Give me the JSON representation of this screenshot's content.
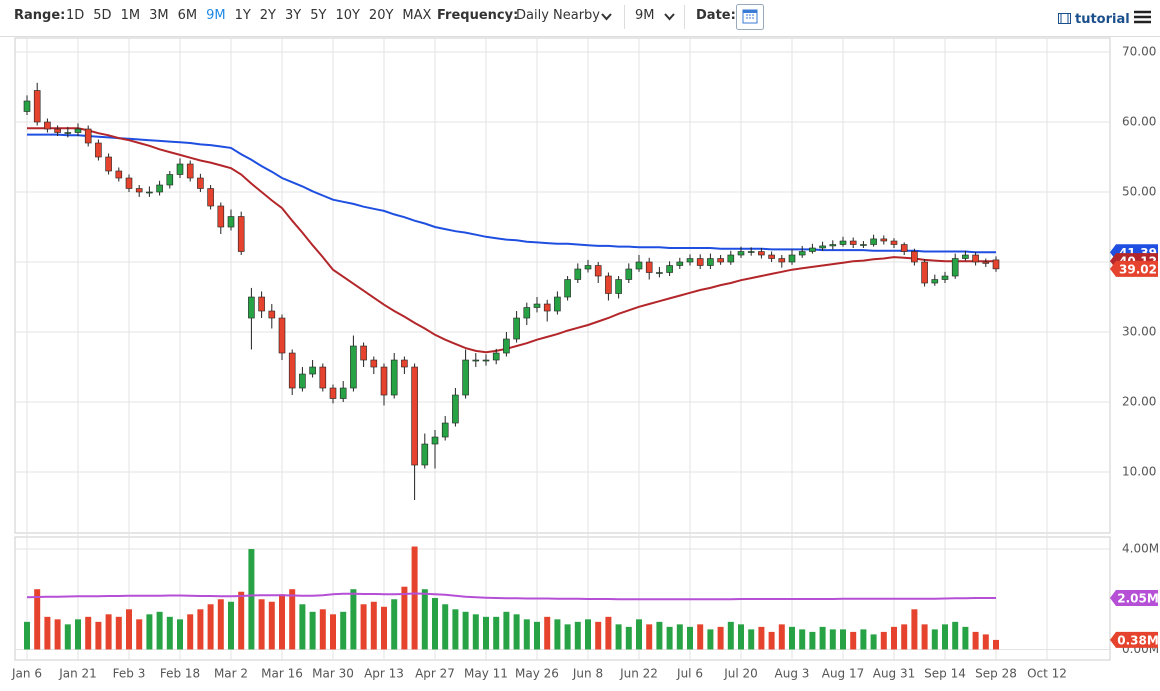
{
  "toolbar": {
    "range_label": "Range:",
    "ranges": [
      "1D",
      "5D",
      "1M",
      "3M",
      "6M",
      "9M",
      "1Y",
      "2Y",
      "3Y",
      "5Y",
      "10Y",
      "20Y",
      "MAX"
    ],
    "active_range": 5,
    "frequency_label": "Frequency:",
    "frequency": "Daily Nearby",
    "period": "9M",
    "date_label": "Date:",
    "tutorial": "tutorial"
  },
  "chart_data": {
    "type": "candlestick",
    "categories": [
      "Jan 6",
      null,
      null,
      null,
      null,
      "Jan 21",
      null,
      null,
      null,
      null,
      "Feb 3",
      null,
      null,
      null,
      null,
      "Feb 18",
      null,
      null,
      null,
      null,
      "Mar 2",
      null,
      null,
      null,
      null,
      "Mar 16",
      null,
      null,
      null,
      null,
      "Mar 30",
      null,
      null,
      null,
      null,
      "Apr 13",
      null,
      null,
      null,
      null,
      "Apr 27",
      null,
      null,
      null,
      null,
      "May 11",
      null,
      null,
      null,
      null,
      "May 26",
      null,
      null,
      null,
      null,
      "Jun 8",
      null,
      null,
      null,
      null,
      "Jun 22",
      null,
      null,
      null,
      null,
      "Jul 6",
      null,
      null,
      null,
      null,
      "Jul 20",
      null,
      null,
      null,
      null,
      "Aug 3",
      null,
      null,
      null,
      null,
      "Aug 17",
      null,
      null,
      null,
      null,
      "Aug 31",
      null,
      null,
      null,
      null,
      "Sep 14",
      null,
      null,
      null,
      null,
      "Sep 28",
      null,
      null,
      null,
      null,
      "Oct 12"
    ],
    "open": [
      61.5,
      64.5,
      60,
      59,
      58.5,
      58.5,
      59,
      57,
      55,
      53,
      52,
      50.5,
      50,
      50,
      51,
      52.5,
      54,
      52,
      50.5,
      48,
      45,
      46.5,
      32,
      35,
      33,
      32,
      27,
      22,
      24,
      25,
      22,
      20.5,
      22,
      28,
      26,
      25,
      21,
      26,
      25,
      11,
      14,
      15,
      17,
      21,
      26,
      26,
      26,
      27,
      29,
      32,
      33.5,
      34,
      33,
      35,
      37.5,
      39,
      39.5,
      38,
      35.5,
      37.5,
      39,
      40,
      38.5,
      38.5,
      39.5,
      40,
      40.5,
      39.5,
      40.5,
      40,
      41,
      41.5,
      41.5,
      41,
      40.5,
      40,
      41,
      41.5,
      42,
      42.3,
      42.5,
      43,
      42.5,
      42.5,
      43.3,
      43,
      42.5,
      41.5,
      40,
      37,
      37.5,
      38,
      40.5,
      41,
      40,
      40.3,
      null,
      null,
      null,
      null,
      null
    ],
    "high": [
      63.8,
      65.6,
      60.5,
      59.5,
      59.3,
      59.8,
      59.5,
      57.5,
      55.5,
      53.5,
      52.5,
      51,
      50.8,
      51.6,
      53,
      54.8,
      54.5,
      52.6,
      51,
      48.5,
      47.5,
      47.2,
      36.3,
      35.8,
      34,
      32.5,
      27.5,
      25,
      26,
      25.5,
      22.5,
      23,
      29.5,
      28.5,
      26.5,
      25.5,
      27,
      26.5,
      25.5,
      15.5,
      16,
      18,
      22,
      27.5,
      27,
      26.8,
      27.6,
      30,
      33,
      34.2,
      35,
      34.6,
      35.8,
      38,
      39.8,
      40.3,
      40,
      38.5,
      38,
      39.8,
      41,
      40.6,
      39.3,
      40.1,
      40.6,
      41.1,
      41.1,
      41.2,
      41,
      41.6,
      42.2,
      42.1,
      42,
      41.5,
      41,
      41.8,
      42.3,
      42.6,
      42.9,
      43.1,
      43.6,
      43.5,
      43,
      43.9,
      43.8,
      43.4,
      42.8,
      41.9,
      40.4,
      38.2,
      38.6,
      41.2,
      41.6,
      41.4,
      40.5,
      40.8,
      null,
      null,
      null,
      null,
      null
    ],
    "low": [
      61,
      59.5,
      58.5,
      58,
      57.8,
      58,
      56.5,
      54.5,
      52.5,
      51.5,
      50,
      49.3,
      49.3,
      49.5,
      50.5,
      52,
      51.5,
      50,
      47.5,
      44,
      44.5,
      41,
      27.5,
      32,
      30.5,
      26,
      21,
      21.5,
      23.5,
      21.5,
      19.8,
      20,
      21.5,
      25,
      24,
      19.5,
      20.5,
      24,
      6,
      10.5,
      10.5,
      14.5,
      16.5,
      20.5,
      25,
      25.2,
      25.4,
      26.5,
      28.5,
      31,
      32.8,
      31.5,
      32.5,
      34.5,
      37,
      38.5,
      37,
      34.5,
      34.8,
      37,
      38.6,
      37.5,
      37.8,
      38,
      39,
      39.5,
      39,
      39,
      39.6,
      39.6,
      40.6,
      40.9,
      40.5,
      40,
      39.2,
      39.6,
      40.6,
      41.2,
      41.6,
      41.8,
      42.2,
      42,
      42,
      42.2,
      42.5,
      42,
      41,
      39.5,
      36.5,
      36.6,
      37,
      37.6,
      40.2,
      39.5,
      39.3,
      38.6,
      null,
      null,
      null,
      null,
      null
    ],
    "close": [
      63,
      60,
      59,
      58.5,
      58.5,
      59,
      57,
      55,
      53,
      52,
      50.5,
      50,
      50,
      51,
      52.5,
      54,
      52,
      50.5,
      48,
      45,
      46.5,
      41.5,
      35,
      33,
      32,
      27,
      22,
      24,
      25,
      22,
      20.5,
      22,
      28,
      26,
      25,
      21,
      26,
      25,
      11,
      14,
      15,
      17,
      21,
      26,
      26,
      26,
      27,
      29,
      32,
      33.5,
      34,
      33,
      35,
      37.5,
      39,
      39.5,
      38,
      35.5,
      37.5,
      39,
      40,
      38.5,
      38.5,
      39.5,
      40,
      40.5,
      39.5,
      40.5,
      40,
      41,
      41.5,
      41.5,
      41,
      40.5,
      40,
      41,
      41.5,
      42,
      42.3,
      42.5,
      43,
      42.5,
      42.5,
      43.3,
      43,
      42.5,
      41.5,
      40,
      37,
      37.5,
      38,
      40.5,
      41,
      40,
      39.8,
      39.02,
      null,
      null,
      null,
      null,
      null
    ],
    "up_color": "#27a345",
    "down_color": "#e5432d",
    "flag_color": "#e5432d",
    "series": [
      {
        "color": "#1f4fe0",
        "values": [
          58.2,
          58.2,
          58.2,
          58.2,
          58.1,
          58.1,
          58.0,
          57.9,
          57.8,
          57.7,
          57.6,
          57.5,
          57.4,
          57.3,
          57.2,
          57.1,
          57.0,
          56.8,
          56.7,
          56.5,
          56.3,
          55.4,
          54.6,
          53.7,
          52.9,
          52.0,
          51.4,
          50.8,
          50.1,
          49.5,
          48.9,
          48.6,
          48.3,
          47.9,
          47.6,
          47.3,
          46.8,
          46.4,
          45.9,
          45.5,
          45.0,
          44.7,
          44.4,
          44.2,
          43.9,
          43.6,
          43.4,
          43.2,
          43.1,
          42.9,
          42.8,
          42.7,
          42.6,
          42.6,
          42.5,
          42.4,
          42.3,
          42.3,
          42.2,
          42.2,
          42.1,
          42.1,
          42.1,
          42.0,
          42.0,
          42.0,
          42.0,
          42.0,
          41.9,
          41.9,
          41.9,
          41.9,
          41.9,
          41.8,
          41.8,
          41.8,
          41.8,
          41.8,
          41.7,
          41.7,
          41.7,
          41.7,
          41.7,
          41.6,
          41.6,
          41.6,
          41.6,
          41.6,
          41.5,
          41.5,
          41.5,
          41.5,
          41.5,
          41.4,
          41.4,
          41.39,
          null,
          null,
          null,
          null,
          null
        ]
      },
      {
        "color": "#b3262a",
        "values": [
          59.1,
          59.1,
          59.1,
          59.1,
          59.1,
          59.1,
          58.8,
          58.4,
          58.1,
          57.7,
          57.4,
          57.0,
          56.6,
          56.1,
          55.7,
          55.3,
          54.9,
          54.5,
          54.2,
          53.8,
          53.4,
          52.5,
          51.2,
          50.0,
          48.8,
          47.7,
          45.9,
          44.2,
          42.4,
          40.7,
          38.9,
          37.9,
          36.9,
          35.9,
          34.9,
          33.9,
          33.0,
          32.2,
          31.3,
          30.5,
          29.6,
          28.9,
          28.3,
          27.7,
          27.3,
          27.1,
          27.3,
          27.6,
          28.0,
          28.4,
          28.9,
          29.3,
          29.7,
          30.2,
          30.6,
          31.0,
          31.5,
          32.0,
          32.6,
          33.1,
          33.6,
          34.0,
          34.4,
          34.8,
          35.2,
          35.6,
          36.0,
          36.3,
          36.7,
          37.0,
          37.4,
          37.7,
          38.0,
          38.3,
          38.6,
          38.9,
          39.1,
          39.3,
          39.5,
          39.7,
          39.9,
          40.1,
          40.2,
          40.4,
          40.5,
          40.7,
          40.6,
          40.5,
          40.3,
          40.2,
          40.1,
          40.1,
          40.1,
          40.1,
          40.1,
          40.12,
          null,
          null,
          null,
          null,
          null
        ]
      }
    ],
    "ylim": [
      1.29,
      72
    ],
    "yticks": [
      {
        "value": 10,
        "label": "10.00"
      },
      {
        "value": 20,
        "label": "20.00"
      },
      {
        "value": 30,
        "label": "30.00"
      },
      {
        "value": 40,
        "label": "40.00"
      },
      {
        "value": 50,
        "label": "50.00"
      },
      {
        "value": 60,
        "label": "60.00"
      },
      {
        "value": 70,
        "label": "70.00"
      }
    ],
    "grid": true,
    "volume": {
      "values": [
        1.1,
        2.4,
        1.3,
        1.2,
        1.0,
        1.2,
        1.3,
        1.1,
        1.4,
        1.3,
        1.6,
        1.2,
        1.4,
        1.5,
        1.3,
        1.2,
        1.4,
        1.6,
        1.8,
        2.0,
        1.9,
        2.3,
        4.0,
        2.0,
        1.9,
        2.2,
        2.4,
        1.8,
        1.5,
        1.6,
        1.4,
        1.5,
        2.4,
        1.8,
        1.9,
        1.7,
        2.0,
        2.5,
        4.1,
        2.4,
        2.05,
        1.8,
        1.6,
        1.5,
        1.4,
        1.3,
        1.3,
        1.5,
        1.4,
        1.2,
        1.1,
        1.3,
        1.2,
        1.0,
        1.1,
        1.2,
        1.1,
        1.3,
        1.0,
        0.9,
        1.2,
        1.0,
        1.1,
        0.9,
        1.0,
        0.9,
        1.0,
        0.8,
        0.9,
        1.1,
        1.0,
        0.8,
        0.9,
        0.7,
        1.0,
        0.9,
        0.8,
        0.7,
        0.9,
        0.8,
        0.8,
        0.7,
        0.8,
        0.6,
        0.7,
        0.9,
        1.0,
        1.6,
        1.0,
        0.8,
        1.0,
        1.1,
        0.9,
        0.7,
        0.6,
        0.38,
        null,
        null,
        null,
        null,
        null
      ],
      "value_labels": [
        null,
        null,
        null,
        null,
        null,
        null,
        null,
        null,
        null,
        null,
        null,
        null,
        null,
        null,
        null,
        null,
        null,
        null,
        null,
        null,
        null,
        null,
        null,
        null,
        null,
        null,
        null,
        null,
        null,
        null,
        null,
        null,
        null,
        null,
        null,
        null,
        null,
        null,
        null,
        null,
        null,
        null,
        null,
        null,
        null,
        null,
        null,
        null,
        null,
        null,
        null,
        null,
        null,
        null,
        null,
        null,
        null,
        null,
        null,
        null,
        null,
        null,
        null,
        null,
        null,
        null,
        null,
        null,
        null,
        null,
        null,
        null,
        null,
        null,
        null,
        null,
        null,
        null,
        null,
        null,
        null,
        null,
        null,
        null,
        null,
        null,
        null,
        null,
        null,
        null,
        null,
        null,
        null,
        null,
        null,
        "0.38M",
        null,
        null,
        null,
        null,
        null
      ],
      "ylim": [
        -0.42,
        4.48
      ],
      "yticks": [
        {
          "value": 0,
          "label": "0.00M"
        },
        {
          "value": 4,
          "label": "4.00M"
        }
      ],
      "series": [
        {
          "color": "#b54fd6",
          "values": [
            2.08,
            2.09,
            2.1,
            2.1,
            2.11,
            2.12,
            2.12,
            2.12,
            2.13,
            2.13,
            2.14,
            2.14,
            2.14,
            2.14,
            2.15,
            2.15,
            2.14,
            2.13,
            2.13,
            2.12,
            2.12,
            2.13,
            2.15,
            2.16,
            2.16,
            2.16,
            2.15,
            2.14,
            2.14,
            2.16,
            2.2,
            2.22,
            2.22,
            2.21,
            2.21,
            2.2,
            2.2,
            2.21,
            2.23,
            2.22,
            2.2,
            2.18,
            2.14,
            2.1,
            2.08,
            2.06,
            2.05,
            2.04,
            2.04,
            2.03,
            2.03,
            2.03,
            2.02,
            2.02,
            2.02,
            2.01,
            2.01,
            2.01,
            2.0,
            2.0,
            2.0,
            2.0,
            2.0,
            2.0,
            2.0,
            2.0,
            2.0,
            2.0,
            2.0,
            2.0,
            2.01,
            2.01,
            2.01,
            2.01,
            2.01,
            2.01,
            2.01,
            2.01,
            2.01,
            2.01,
            2.02,
            2.02,
            2.02,
            2.02,
            2.02,
            2.02,
            2.02,
            2.02,
            2.02,
            2.02,
            2.03,
            2.04,
            2.04,
            2.05,
            2.05,
            2.05,
            null,
            null,
            null,
            null,
            null
          ],
          "value_labels": [
            null,
            null,
            null,
            null,
            null,
            null,
            null,
            null,
            null,
            null,
            null,
            null,
            null,
            null,
            null,
            null,
            null,
            null,
            null,
            null,
            null,
            null,
            null,
            null,
            null,
            null,
            null,
            null,
            null,
            null,
            null,
            null,
            null,
            null,
            null,
            null,
            null,
            null,
            null,
            null,
            null,
            null,
            null,
            null,
            null,
            null,
            null,
            null,
            null,
            null,
            null,
            null,
            null,
            null,
            null,
            null,
            null,
            null,
            null,
            null,
            null,
            null,
            null,
            null,
            null,
            null,
            null,
            null,
            null,
            null,
            null,
            null,
            null,
            null,
            null,
            null,
            null,
            null,
            null,
            null,
            null,
            null,
            null,
            null,
            null,
            null,
            null,
            null,
            null,
            null,
            null,
            null,
            null,
            null,
            null,
            "2.05M",
            null,
            null,
            null,
            null,
            null
          ]
        }
      ]
    }
  }
}
